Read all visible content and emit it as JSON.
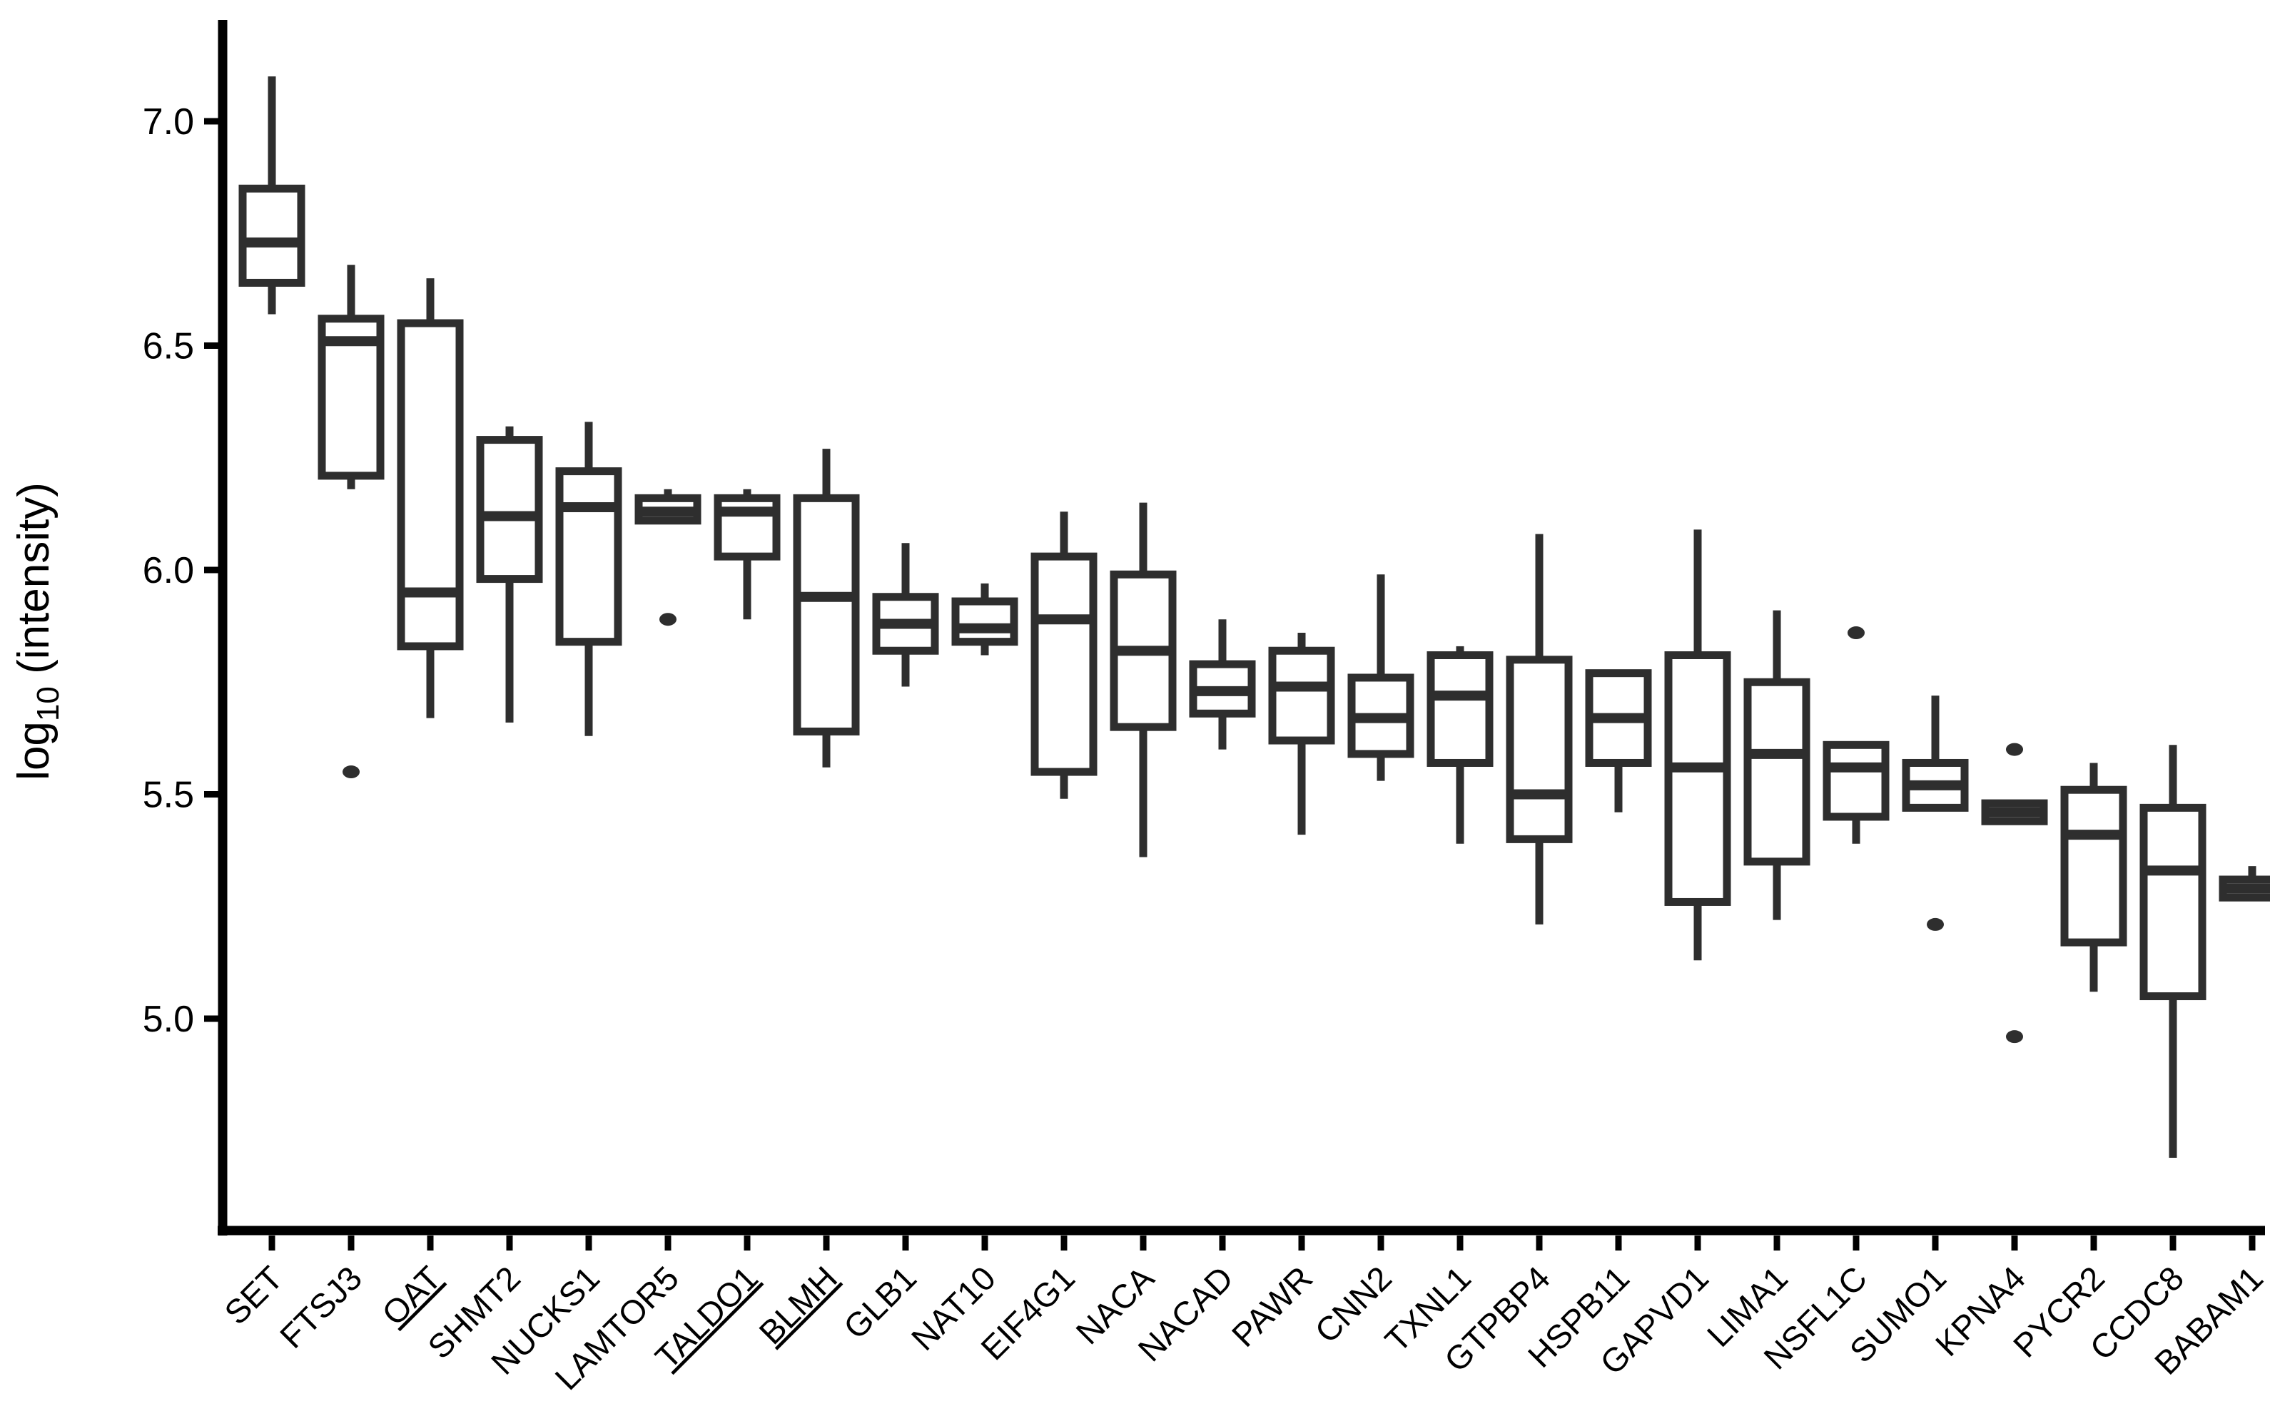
{
  "chart_data": {
    "type": "boxplot",
    "title": "",
    "xlabel": "",
    "ylabel": {
      "base": "log",
      "sub": "10",
      "rest": " (intensity)"
    },
    "y_ticks": [
      {
        "label": "7.0",
        "value": 7.0
      },
      {
        "label": "6.5",
        "value": 6.5
      },
      {
        "label": "6.0",
        "value": 6.0
      },
      {
        "label": "5.5",
        "value": 5.5
      },
      {
        "label": "5.0",
        "value": 5.0
      }
    ],
    "ylim": [
      4.55,
      7.22
    ],
    "grid": "off",
    "legend": "none",
    "underlined_categories": [
      "OAT",
      "TALDO1",
      "BLMH"
    ],
    "boxes": [
      {
        "gene": "SET",
        "underline": false,
        "whisker_low": 6.57,
        "q1": 6.64,
        "median": 6.73,
        "q3": 6.85,
        "whisker_high": 7.1,
        "outliers": []
      },
      {
        "gene": "FTSJ3",
        "underline": false,
        "whisker_low": 6.18,
        "q1": 6.21,
        "median": 6.51,
        "q3": 6.56,
        "whisker_high": 6.68,
        "outliers": [
          5.55
        ]
      },
      {
        "gene": "OAT",
        "underline": true,
        "whisker_low": 5.67,
        "q1": 5.83,
        "median": 5.95,
        "q3": 6.55,
        "whisker_high": 6.65,
        "outliers": []
      },
      {
        "gene": "SHMT2",
        "underline": false,
        "whisker_low": 5.66,
        "q1": 5.98,
        "median": 6.12,
        "q3": 6.29,
        "whisker_high": 6.32,
        "outliers": []
      },
      {
        "gene": "NUCKS1",
        "underline": false,
        "whisker_low": 5.63,
        "q1": 5.84,
        "median": 6.14,
        "q3": 6.22,
        "whisker_high": 6.33,
        "outliers": []
      },
      {
        "gene": "LAMTOR5",
        "underline": false,
        "whisker_low": 6.11,
        "q1": 6.11,
        "median": 6.13,
        "q3": 6.16,
        "whisker_high": 6.18,
        "outliers": [
          5.89
        ]
      },
      {
        "gene": "TALDO1",
        "underline": true,
        "whisker_low": 5.89,
        "q1": 6.03,
        "median": 6.13,
        "q3": 6.16,
        "whisker_high": 6.18,
        "outliers": []
      },
      {
        "gene": "BLMH",
        "underline": true,
        "whisker_low": 5.56,
        "q1": 5.64,
        "median": 5.94,
        "q3": 6.16,
        "whisker_high": 6.27,
        "outliers": []
      },
      {
        "gene": "GLB1",
        "underline": false,
        "whisker_low": 5.74,
        "q1": 5.82,
        "median": 5.88,
        "q3": 5.94,
        "whisker_high": 6.06,
        "outliers": []
      },
      {
        "gene": "NAT10",
        "underline": false,
        "whisker_low": 5.81,
        "q1": 5.84,
        "median": 5.87,
        "q3": 5.93,
        "whisker_high": 5.97,
        "outliers": []
      },
      {
        "gene": "EIF4G1",
        "underline": false,
        "whisker_low": 5.49,
        "q1": 5.55,
        "median": 5.89,
        "q3": 6.03,
        "whisker_high": 6.13,
        "outliers": []
      },
      {
        "gene": "NACA",
        "underline": false,
        "whisker_low": 5.36,
        "q1": 5.65,
        "median": 5.82,
        "q3": 5.99,
        "whisker_high": 6.15,
        "outliers": []
      },
      {
        "gene": "NACAD",
        "underline": false,
        "whisker_low": 5.6,
        "q1": 5.68,
        "median": 5.73,
        "q3": 5.79,
        "whisker_high": 5.89,
        "outliers": []
      },
      {
        "gene": "PAWR",
        "underline": false,
        "whisker_low": 5.41,
        "q1": 5.62,
        "median": 5.74,
        "q3": 5.82,
        "whisker_high": 5.86,
        "outliers": []
      },
      {
        "gene": "CNN2",
        "underline": false,
        "whisker_low": 5.53,
        "q1": 5.59,
        "median": 5.67,
        "q3": 5.76,
        "whisker_high": 5.99,
        "outliers": []
      },
      {
        "gene": "TXNL1",
        "underline": false,
        "whisker_low": 5.39,
        "q1": 5.57,
        "median": 5.72,
        "q3": 5.81,
        "whisker_high": 5.83,
        "outliers": []
      },
      {
        "gene": "GTPBP4",
        "underline": false,
        "whisker_low": 5.21,
        "q1": 5.4,
        "median": 5.5,
        "q3": 5.8,
        "whisker_high": 6.08,
        "outliers": []
      },
      {
        "gene": "HSPB11",
        "underline": false,
        "whisker_low": 5.46,
        "q1": 5.57,
        "median": 5.67,
        "q3": 5.77,
        "whisker_high": 5.77,
        "outliers": []
      },
      {
        "gene": "GAPVD1",
        "underline": false,
        "whisker_low": 5.13,
        "q1": 5.26,
        "median": 5.56,
        "q3": 5.81,
        "whisker_high": 6.09,
        "outliers": []
      },
      {
        "gene": "LIMA1",
        "underline": false,
        "whisker_low": 5.22,
        "q1": 5.35,
        "median": 5.59,
        "q3": 5.75,
        "whisker_high": 5.91,
        "outliers": []
      },
      {
        "gene": "NSFL1C",
        "underline": false,
        "whisker_low": 5.39,
        "q1": 5.45,
        "median": 5.56,
        "q3": 5.61,
        "whisker_high": 5.61,
        "outliers": [
          5.86
        ]
      },
      {
        "gene": "SUMO1",
        "underline": false,
        "whisker_low": 5.47,
        "q1": 5.47,
        "median": 5.52,
        "q3": 5.57,
        "whisker_high": 5.72,
        "outliers": [
          5.21
        ]
      },
      {
        "gene": "KPNA4",
        "underline": false,
        "whisker_low": 5.44,
        "q1": 5.44,
        "median": 5.46,
        "q3": 5.48,
        "whisker_high": 5.48,
        "outliers": [
          5.6,
          4.96
        ]
      },
      {
        "gene": "PYCR2",
        "underline": false,
        "whisker_low": 5.06,
        "q1": 5.17,
        "median": 5.41,
        "q3": 5.51,
        "whisker_high": 5.57,
        "outliers": []
      },
      {
        "gene": "CCDC8",
        "underline": false,
        "whisker_low": 4.69,
        "q1": 5.05,
        "median": 5.33,
        "q3": 5.47,
        "whisker_high": 5.61,
        "outliers": []
      },
      {
        "gene": "BABAM1",
        "underline": false,
        "whisker_low": 5.27,
        "q1": 5.27,
        "median": 5.29,
        "q3": 5.31,
        "whisker_high": 5.34,
        "outliers": []
      }
    ]
  },
  "colors": {
    "background": "#ffffff",
    "axis": "#000000",
    "box_stroke": "#2e2e2e",
    "box_fill": "#ffffff",
    "text": "#000000"
  }
}
